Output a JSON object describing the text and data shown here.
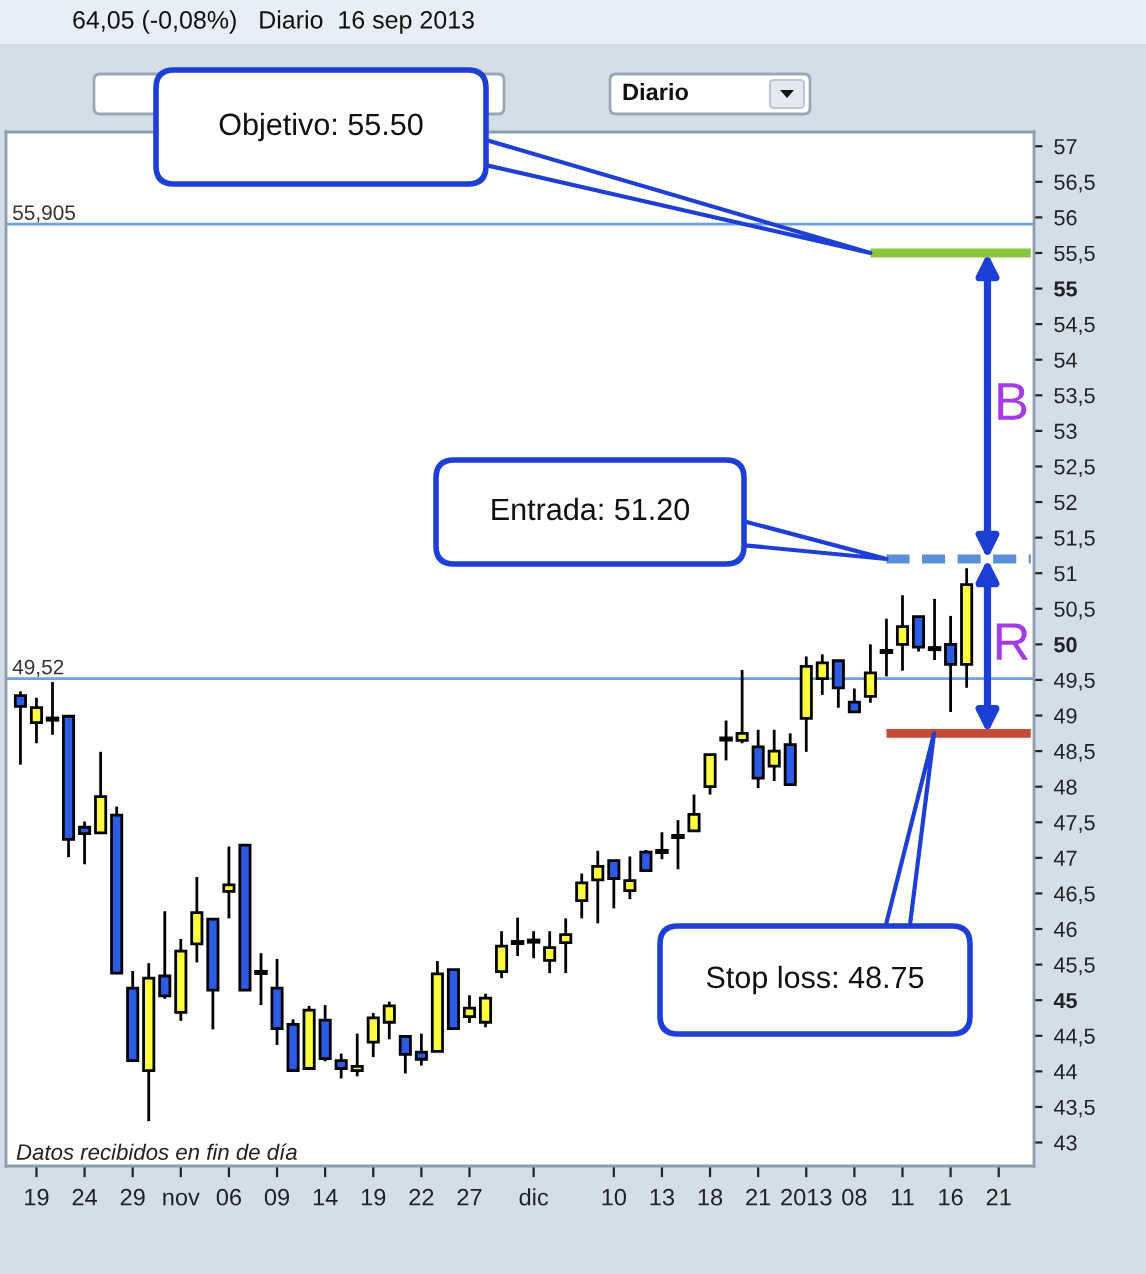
{
  "chart_data": {
    "type": "candlestick",
    "title": "64,05 (-0,08%)   Diario  16 sep 2013",
    "categories": [
      null,
      "19",
      null,
      null,
      "24",
      null,
      null,
      "29",
      null,
      null,
      "nov",
      null,
      null,
      "06",
      null,
      null,
      "09",
      null,
      null,
      "14",
      null,
      null,
      "19",
      null,
      null,
      "22",
      null,
      null,
      "27",
      null,
      null,
      null,
      "dic",
      null,
      null,
      null,
      null,
      "10",
      null,
      null,
      "13",
      null,
      null,
      "18",
      null,
      null,
      "21",
      null,
      null,
      "2013",
      null,
      null,
      "08",
      null,
      null,
      "11",
      null,
      null,
      "16",
      null,
      null,
      "21",
      null,
      null
    ],
    "ohlc": [
      [
        49.28,
        49.34,
        48.31,
        49.13
      ],
      [
        48.9,
        49.25,
        48.61,
        49.11
      ],
      [
        48.95,
        49.47,
        48.73,
        48.95
      ],
      [
        48.99,
        48.99,
        47.01,
        47.26
      ],
      [
        47.43,
        47.51,
        46.91,
        47.34
      ],
      [
        47.35,
        48.49,
        47.35,
        47.86
      ],
      [
        47.6,
        47.72,
        45.38,
        45.38
      ],
      [
        45.17,
        45.41,
        44.15,
        44.15
      ],
      [
        44.01,
        45.52,
        43.3,
        45.31
      ],
      [
        45.34,
        46.25,
        45.02,
        45.06
      ],
      [
        44.83,
        45.86,
        44.71,
        45.69
      ],
      [
        45.79,
        46.73,
        45.53,
        46.23
      ],
      [
        46.14,
        46.14,
        44.59,
        45.14
      ],
      [
        46.53,
        47.16,
        46.15,
        46.62
      ],
      [
        47.18,
        47.18,
        45.14,
        45.14
      ],
      [
        45.39,
        45.66,
        44.93,
        45.39
      ],
      [
        45.17,
        45.58,
        44.37,
        44.6
      ],
      [
        44.66,
        44.73,
        44.01,
        44.01
      ],
      [
        44.04,
        44.92,
        44.04,
        44.86
      ],
      [
        44.72,
        44.93,
        44.14,
        44.18
      ],
      [
        44.15,
        44.25,
        43.9,
        44.04
      ],
      [
        44.01,
        44.53,
        43.93,
        44.07
      ],
      [
        44.41,
        44.82,
        44.2,
        44.75
      ],
      [
        44.69,
        44.98,
        44.45,
        44.92
      ],
      [
        44.49,
        44.49,
        43.97,
        44.24
      ],
      [
        44.27,
        44.53,
        44.08,
        44.17
      ],
      [
        44.28,
        45.55,
        44.28,
        45.37
      ],
      [
        45.43,
        45.43,
        44.6,
        44.6
      ],
      [
        44.77,
        45.07,
        44.68,
        44.89
      ],
      [
        44.69,
        45.09,
        44.62,
        45.03
      ],
      [
        45.4,
        45.97,
        45.31,
        45.76
      ],
      [
        45.81,
        46.16,
        45.62,
        45.81
      ],
      [
        45.83,
        45.97,
        45.59,
        45.83
      ],
      [
        45.56,
        45.97,
        45.38,
        45.74
      ],
      [
        45.81,
        46.15,
        45.38,
        45.92
      ],
      [
        46.4,
        46.78,
        46.15,
        46.65
      ],
      [
        46.69,
        47.1,
        46.08,
        46.88
      ],
      [
        46.96,
        46.96,
        46.29,
        46.71
      ],
      [
        46.54,
        47.02,
        46.42,
        46.68
      ],
      [
        47.08,
        47.11,
        46.82,
        46.82
      ],
      [
        47.09,
        47.36,
        46.98,
        47.09
      ],
      [
        47.3,
        47.53,
        46.84,
        47.3
      ],
      [
        47.38,
        47.89,
        47.38,
        47.61
      ],
      [
        48.0,
        48.45,
        47.89,
        48.45
      ],
      [
        48.67,
        48.93,
        48.37,
        48.67
      ],
      [
        48.65,
        49.64,
        48.61,
        48.75
      ],
      [
        48.56,
        48.8,
        47.98,
        48.12
      ],
      [
        48.29,
        48.8,
        48.08,
        48.5
      ],
      [
        48.59,
        48.75,
        48.03,
        48.03
      ],
      [
        48.96,
        49.83,
        48.49,
        49.69
      ],
      [
        49.52,
        49.86,
        49.29,
        49.74
      ],
      [
        49.77,
        49.77,
        49.11,
        49.39
      ],
      [
        49.19,
        49.38,
        49.05,
        49.05
      ],
      [
        49.27,
        50.0,
        49.18,
        49.6
      ],
      [
        49.9,
        50.36,
        49.55,
        49.9
      ],
      [
        50.0,
        50.69,
        49.63,
        50.25
      ],
      [
        50.39,
        50.39,
        49.9,
        49.96
      ],
      [
        49.94,
        50.64,
        49.78,
        49.94
      ],
      [
        50.0,
        50.4,
        49.05,
        49.72
      ],
      [
        49.72,
        51.07,
        49.39,
        50.84
      ],
      null,
      null,
      null,
      null
    ],
    "colors": [
      "#2b5ce6",
      "#ffff3c",
      "#000000",
      "#2b5ce6",
      "#2b5ce6",
      "#ffff3c",
      "#2b5ce6",
      "#2b5ce6",
      "#ffff3c",
      "#2b5ce6",
      "#ffff3c",
      "#ffff3c",
      "#2b5ce6",
      "#ffff3c",
      "#2b5ce6",
      "#000000",
      "#2b5ce6",
      "#2b5ce6",
      "#ffff3c",
      "#2b5ce6",
      "#2b5ce6",
      "#ffff3c",
      "#ffff3c",
      "#ffff3c",
      "#2b5ce6",
      "#2b5ce6",
      "#ffff3c",
      "#2b5ce6",
      "#ffff3c",
      "#ffff3c",
      "#ffff3c",
      "#000000",
      "#000000",
      "#ffff3c",
      "#ffff3c",
      "#ffff3c",
      "#ffff3c",
      "#2b5ce6",
      "#ffff3c",
      "#2b5ce6",
      "#000000",
      "#000000",
      "#ffff3c",
      "#ffff3c",
      "#000000",
      "#ffff3c",
      "#2b5ce6",
      "#ffff3c",
      "#2b5ce6",
      "#ffff3c",
      "#ffff3c",
      "#2b5ce6",
      "#2b5ce6",
      "#ffff3c",
      "#000000",
      "#ffff3c",
      "#2b5ce6",
      "#000000",
      "#2b5ce6",
      "#ffff3c",
      null,
      null,
      null,
      null
    ],
    "series": [
      {
        "type": "line",
        "color": "#8cc63f",
        "line_style": "solid",
        "values": [
          null,
          null,
          null,
          null,
          null,
          null,
          null,
          null,
          null,
          null,
          null,
          null,
          null,
          null,
          null,
          null,
          null,
          null,
          null,
          null,
          null,
          null,
          null,
          null,
          null,
          null,
          null,
          null,
          null,
          null,
          null,
          null,
          null,
          null,
          null,
          null,
          null,
          null,
          null,
          null,
          null,
          null,
          null,
          null,
          null,
          null,
          null,
          null,
          null,
          null,
          null,
          null,
          null,
          55.5,
          55.5,
          55.5,
          55.5,
          55.5,
          55.5,
          55.5,
          55.5,
          55.5,
          55.5,
          55.5
        ]
      },
      {
        "type": "line",
        "color": "#5b8ed8",
        "line_style": "dashed",
        "values": [
          null,
          null,
          null,
          null,
          null,
          null,
          null,
          null,
          null,
          null,
          null,
          null,
          null,
          null,
          null,
          null,
          null,
          null,
          null,
          null,
          null,
          null,
          null,
          null,
          null,
          null,
          null,
          null,
          null,
          null,
          null,
          null,
          null,
          null,
          null,
          null,
          null,
          null,
          null,
          null,
          null,
          null,
          null,
          null,
          null,
          null,
          null,
          null,
          null,
          null,
          null,
          null,
          null,
          null,
          51.2,
          51.2,
          51.2,
          51.2,
          51.2,
          51.2,
          51.2,
          51.2,
          51.2,
          51.2
        ]
      },
      {
        "type": "line",
        "color": "#c64a36",
        "line_style": "solid",
        "values": [
          null,
          null,
          null,
          null,
          null,
          null,
          null,
          null,
          null,
          null,
          null,
          null,
          null,
          null,
          null,
          null,
          null,
          null,
          null,
          null,
          null,
          null,
          null,
          null,
          null,
          null,
          null,
          null,
          null,
          null,
          null,
          null,
          null,
          null,
          null,
          null,
          null,
          null,
          null,
          null,
          null,
          null,
          null,
          null,
          null,
          null,
          null,
          null,
          null,
          null,
          null,
          null,
          null,
          null,
          48.75,
          48.75,
          48.75,
          48.75,
          48.75,
          48.75,
          48.75,
          48.75,
          48.75,
          48.75
        ]
      }
    ],
    "ylim": [
      42.67,
      57.2
    ],
    "yticks": [
      43,
      {
        "value": 43.5,
        "label": "43,5"
      },
      44,
      {
        "value": 44.5,
        "label": "44,5"
      },
      45,
      {
        "value": 45.5,
        "label": "45,5"
      },
      46,
      {
        "value": 46.5,
        "label": "46,5"
      },
      47,
      {
        "value": 47.5,
        "label": "47,5"
      },
      48,
      {
        "value": 48.5,
        "label": "48,5"
      },
      49,
      {
        "value": 49.5,
        "label": "49,5"
      },
      50,
      {
        "value": 50.5,
        "label": "50,5"
      },
      51,
      {
        "value": 51.5,
        "label": "51,5"
      },
      52,
      {
        "value": 52.5,
        "label": "52,5"
      },
      53,
      {
        "value": 53.5,
        "label": "53,5"
      },
      54,
      {
        "value": 54.5,
        "label": "54,5"
      },
      55,
      {
        "value": 55.5,
        "label": "55,5"
      },
      56,
      {
        "value": 56.5,
        "label": "56,5"
      },
      57
    ],
    "ref_lines": [
      {
        "axis": "y",
        "value": 55.905,
        "label": "55,905",
        "color": "#6f9fe6"
      },
      {
        "axis": "y",
        "value": 49.52,
        "label": "49,52",
        "color": "#6f9fe6"
      }
    ],
    "annotations": [
      "Objetivo: 55.50",
      "Entrada: 51.20",
      "Stop loss: 48.75",
      "B",
      "R",
      "Diario",
      "Datos recibidos en fin de día"
    ]
  }
}
